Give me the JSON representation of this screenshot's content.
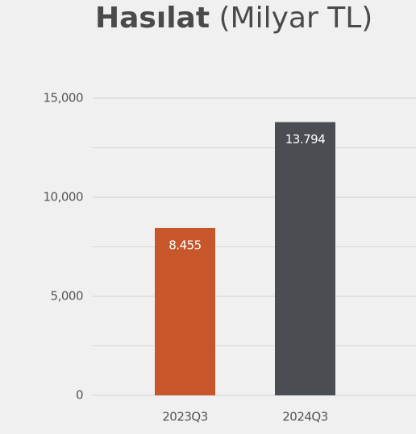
{
  "chart_data": {
    "type": "bar",
    "title": {
      "main": "Hasılat",
      "unit": "(Milyar TL)"
    },
    "categories": [
      "2023Q3",
      "2024Q3"
    ],
    "values": [
      8455,
      13794
    ],
    "value_labels": [
      "8.455",
      "13.794"
    ],
    "colors": [
      "#c8562b",
      "#4a4d51"
    ],
    "ylim": [
      0,
      15000
    ],
    "yticks": [
      0,
      {
        "value": 5000,
        "label": "5,000"
      },
      {
        "value": 10000,
        "label": "10,000"
      },
      {
        "value": 15000,
        "label": "15,000"
      }
    ],
    "minor_yticks": [
      2500,
      7500,
      12500
    ],
    "grid": true
  }
}
